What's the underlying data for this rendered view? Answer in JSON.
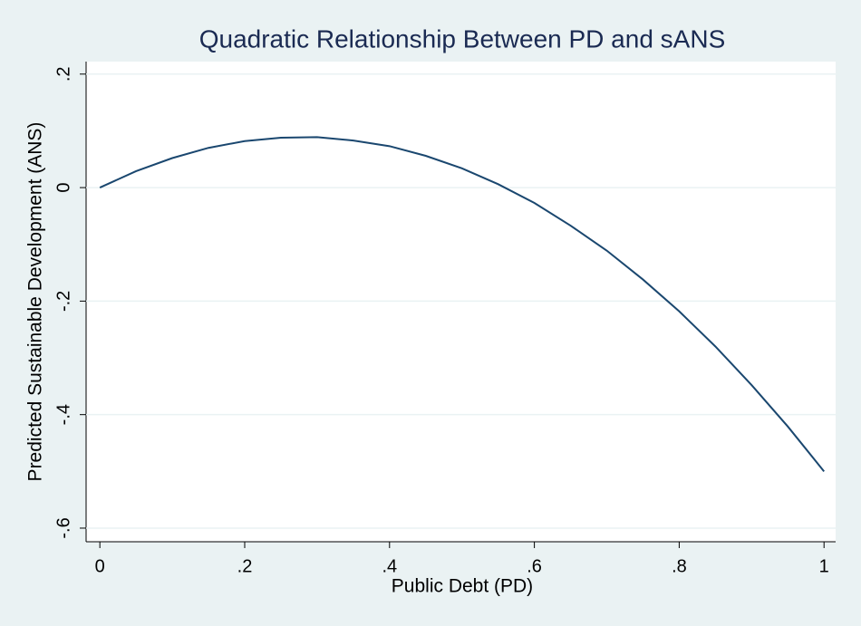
{
  "chart_data": {
    "type": "line",
    "title": "Quadratic Relationship Between PD and sANS",
    "x_label": "Public Debt (PD)",
    "y_label": "Predicted Sustainable Development (ANS)",
    "x": [
      0,
      0.05,
      0.1,
      0.15,
      0.2,
      0.25,
      0.3,
      0.35,
      0.4,
      0.45,
      0.5,
      0.55,
      0.6,
      0.65,
      0.7,
      0.75,
      0.8,
      0.85,
      0.9,
      0.95,
      1
    ],
    "series": [
      {
        "color": "#1a476f",
        "values": [
          0,
          0.029,
          0.052,
          0.07,
          0.082,
          0.088,
          0.089,
          0.083,
          0.073,
          0.056,
          0.034,
          0.006,
          -0.027,
          -0.067,
          -0.111,
          -0.162,
          -0.218,
          -0.28,
          -0.348,
          -0.421,
          -0.5
        ]
      }
    ],
    "xlim": [
      -0.019,
      1.016
    ],
    "ylim": [
      -0.624,
      0.222
    ],
    "xticks": [
      0,
      {
        "value": 0.2,
        "label": ".2"
      },
      {
        "value": 0.4,
        "label": ".4"
      },
      {
        "value": 0.6,
        "label": ".6"
      },
      {
        "value": 0.8,
        "label": ".8"
      },
      1
    ],
    "yticks": [
      {
        "value": 0.2,
        "label": ".2"
      },
      0,
      {
        "value": -0.2,
        "label": "-.2"
      },
      {
        "value": -0.4,
        "label": "-.4"
      },
      {
        "value": -0.6,
        "label": "-.6"
      }
    ],
    "grid": true
  }
}
